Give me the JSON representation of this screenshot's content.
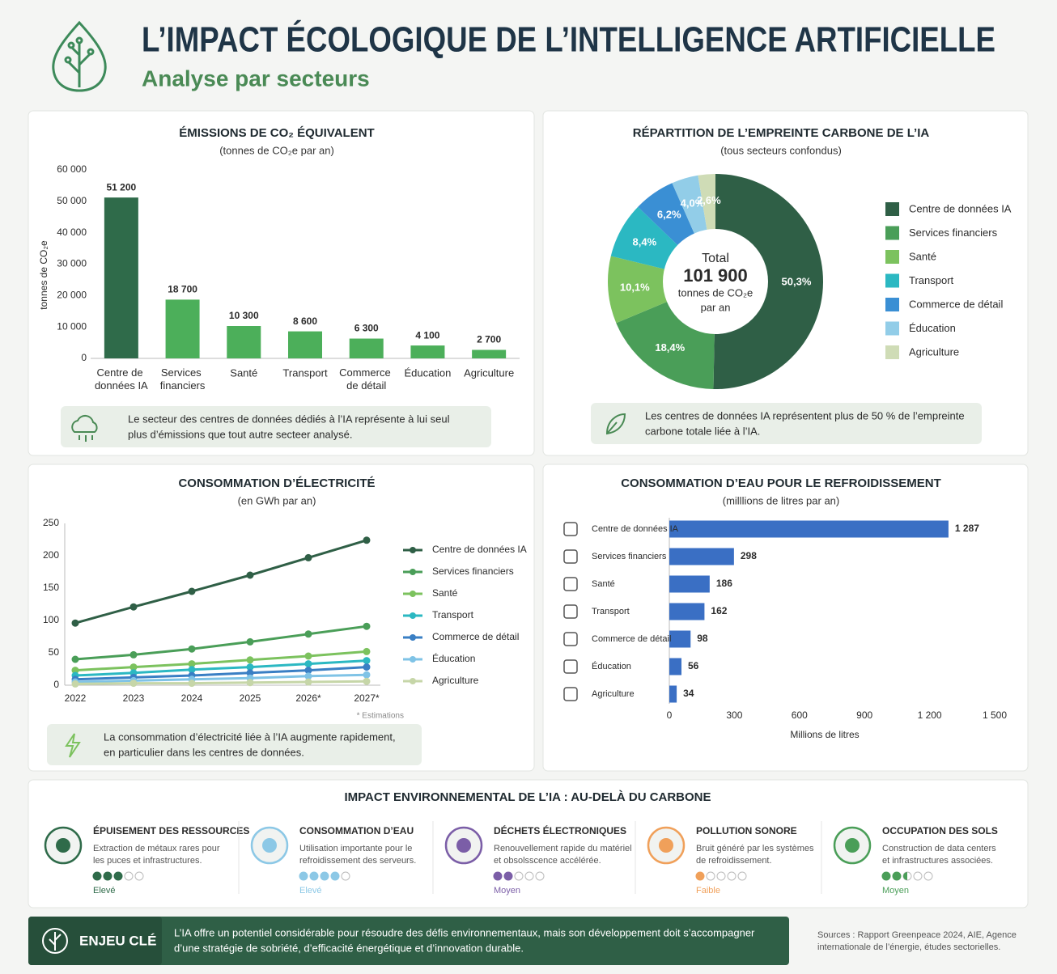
{
  "header": {
    "title": "L’IMPACT ÉCOLOGIQUE DE L’INTELLIGENCE ARTIFICIELLE",
    "subtitle": "Analyse par secteurs"
  },
  "chart_data": [
    {
      "type": "bar",
      "title": "ÉMISSIONS DE CO₂ ÉQUIVALENT",
      "subtitle": "(tonnes de CO₂e par an)",
      "y_label": "tonnes de CO₂e",
      "categories": [
        "Centre de données IA",
        "Services financiers",
        "Santé",
        "Transport",
        "Commerce de détail",
        "Éducation",
        "Agriculture"
      ],
      "values": [
        51200,
        18700,
        10300,
        8600,
        6300,
        4100,
        2700
      ],
      "value_labels": [
        "51 200",
        "18 700",
        "10 300",
        "8 600",
        "6 300",
        "4 100",
        "2 700"
      ],
      "colors": [
        "#2f6b4a",
        "#4caf5a",
        "#4caf5a",
        "#4caf5a",
        "#4caf5a",
        "#4caf5a",
        "#4caf5a"
      ],
      "ylim": [
        0,
        60000
      ],
      "yticks": [
        0,
        {
          "value": 10000,
          "label": "10 000"
        },
        {
          "value": 20000,
          "label": "20 000"
        },
        {
          "value": 30000,
          "label": "30 000"
        },
        {
          "value": 40000,
          "label": "40 000"
        },
        {
          "value": 50000,
          "label": "50 000"
        },
        {
          "value": 60000,
          "label": "60 000"
        }
      ],
      "grid": false,
      "note": [
        "Le secteur des centres de données dédiés à l’IA représente à lui seul",
        "plus d’émissions que tout autre secteer analysé."
      ]
    },
    {
      "type": "pie",
      "title": "RÉPARTITION DE L’EMPREINTE CARBONE DE L’IA",
      "subtitle": "(tous secteurs confondus)",
      "categories": [
        "Centre de données IA",
        "Services financiers",
        "Santé",
        "Transport",
        "Commerce de détail",
        "Éducation",
        "Agriculture"
      ],
      "values": [
        50.3,
        18.4,
        10.1,
        8.4,
        6.2,
        4.0,
        2.6
      ],
      "value_labels": [
        "50,3%",
        "18,4%",
        "10,1%",
        "8,4%",
        "6,2%",
        "4,0%",
        "2,6%"
      ],
      "colors": [
        "#2f5f46",
        "#4a9e58",
        "#7cc25e",
        "#2bb8c2",
        "#3a8fd4",
        "#92cde8",
        "#cfdcb6"
      ],
      "center": [
        "Total",
        "101 900",
        "tonnes de CO₂e",
        "par an"
      ],
      "note": [
        "Les centres de données IA représentent plus de 50 % de l’empreinte",
        "carbone totale liée à l’IA."
      ]
    },
    {
      "type": "line",
      "title": "CONSOMMATION D’ÉLECTRICITÉ",
      "subtitle": "(en GWh par an)",
      "categories": [
        "2022",
        "2023",
        "2024",
        "2025",
        "2026*",
        "2027*"
      ],
      "series": [
        {
          "name": "Centre de données IA",
          "color": "#2f5f46",
          "values": [
            96,
            121,
            145,
            170,
            197,
            224
          ]
        },
        {
          "name": "Services financiers",
          "color": "#4a9e58",
          "values": [
            40,
            47,
            56,
            67,
            79,
            91
          ]
        },
        {
          "name": "Santé",
          "color": "#7cc25e",
          "values": [
            23,
            28,
            33,
            39,
            45,
            52
          ]
        },
        {
          "name": "Transport",
          "color": "#2bb8c2",
          "values": [
            15,
            19,
            24,
            28,
            33,
            38
          ]
        },
        {
          "name": "Commerce de détail",
          "color": "#3a7fc4",
          "values": [
            9,
            12,
            15,
            19,
            23,
            28
          ]
        },
        {
          "name": "Éducation",
          "color": "#7fc3e6",
          "values": [
            5,
            7,
            9,
            11,
            14,
            16
          ]
        },
        {
          "name": "Agriculture",
          "color": "#c6d6a8",
          "values": [
            2,
            3,
            3,
            4,
            5,
            6
          ]
        }
      ],
      "ylim": [
        0,
        250
      ],
      "yticks": [
        0,
        50,
        100,
        150,
        200,
        250
      ],
      "grid": false,
      "footnote": "* Estimations",
      "note": [
        "La consommation d’électricité liée à l’IA augmente rapidement,",
        "en particulier dans les centres de données."
      ]
    },
    {
      "type": "barh",
      "title": "CONSOMMATION D’EAU POUR LE REFROIDISSEMENT",
      "subtitle": "(milllions de litres par an)",
      "categories": [
        "Centre de données IA",
        "Services financiers",
        "Santé",
        "Transport",
        "Commerce de détail",
        "Éducation",
        "Agriculture"
      ],
      "values": [
        1287,
        298,
        186,
        162,
        98,
        56,
        34
      ],
      "value_labels": [
        "1 287",
        "298",
        "186",
        "162",
        "98",
        "56",
        "34"
      ],
      "color": "#3a6fc4",
      "xlim": [
        0,
        1500
      ],
      "xticks": [
        0,
        300,
        600,
        900,
        {
          "value": 1200,
          "label": "1 200"
        },
        {
          "value": 1500,
          "label": "1 500"
        }
      ],
      "x_label": "Millions de litres"
    }
  ],
  "impact": {
    "title": "IMPACT ENVIRONNEMENTAL DE L’IA : AU-DELÀ DU CARBONE",
    "items": [
      {
        "title": "ÉPUISEMENT DES RESSOURCES",
        "text": [
          "Extraction de métaux rares pour",
          "les puces et infrastructures."
        ],
        "level": 3,
        "level_label": "Elevé",
        "color": "#2f6b4a"
      },
      {
        "title": "CONSOMMATION D’EAU",
        "text": [
          "Utilisation importante pour le",
          "refroidissement des serveurs."
        ],
        "level": 4,
        "level_label": "Elevé",
        "color": "#8cc8e6"
      },
      {
        "title": "DÉCHETS ÉLECTRONIQUES",
        "text": [
          "Renouvellement rapide du matériel",
          "et obsolsscence accélérée."
        ],
        "level": 2,
        "level_label": "Moyen",
        "color": "#7b5ea7"
      },
      {
        "title": "POLLUTION SONORE",
        "text": [
          "Bruit généré par les systèmes",
          "de refroidissement."
        ],
        "level": 1,
        "level_label": "Faible",
        "color": "#f0a05a"
      },
      {
        "title": "OCCUPATION DES SOLS",
        "text": [
          "Construction de data centers",
          "et infrastructures associées."
        ],
        "level": 2.5,
        "level_label": "Moyen",
        "color": "#4a9e58"
      }
    ]
  },
  "key": {
    "label": "ENJEU CLÉ",
    "text": [
      "L’IA offre un potentiel considérable pour résoudre des défis environnementaux, mais son développement doit s’accompagner",
      "d’une stratégie de sobriété, d’efficacité énergétique et d’innovation durable."
    ]
  },
  "sources": [
    "Sources : Rapport Greenpeace 2024, AIE, Agence",
    "internationale de l’énergie, études sectorielles."
  ]
}
